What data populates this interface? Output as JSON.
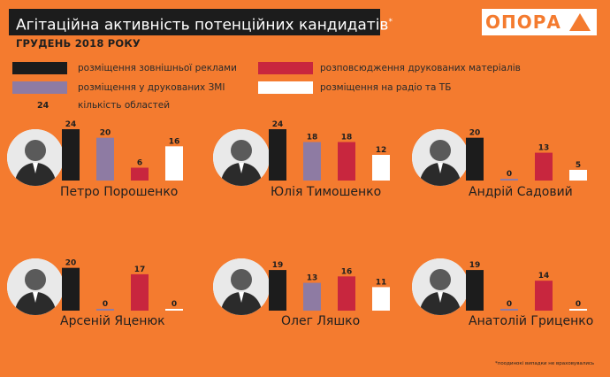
{
  "header": {
    "title": "Агітаційна активність потенційних кандидатів",
    "title_mark": "*",
    "subtitle": "ГРУДЕНЬ 2018 РОКУ",
    "logo_text": "ОПОРА"
  },
  "legend": {
    "items": [
      {
        "label": "розміщення зовнішньої реклами",
        "color": "#1c1c1c"
      },
      {
        "label": "розміщення у друкованих ЗМІ",
        "color": "#8E7BA3"
      },
      {
        "label": "розповсюдження друкованих матеріалів",
        "color": "#C8263E"
      },
      {
        "label": "розміщення на радіо та ТБ",
        "color": "#FFFFFF"
      }
    ],
    "count_sample": "24",
    "count_label": "кількість областей"
  },
  "chart_data": [
    {
      "type": "bar",
      "name": "Петро Порошенко",
      "categories": [
        "розміщення зовнішньої реклами",
        "розміщення у друкованих ЗМІ",
        "розповсюдження друкованих матеріалів",
        "розміщення на радіо та ТБ"
      ],
      "values": [
        24,
        20,
        6,
        16
      ],
      "ylim": [
        0,
        24
      ]
    },
    {
      "type": "bar",
      "name": "Юлія Тимошенко",
      "categories": [
        "розміщення зовнішньої реклами",
        "розміщення у друкованих ЗМІ",
        "розповсюдження друкованих матеріалів",
        "розміщення на радіо та ТБ"
      ],
      "values": [
        24,
        18,
        18,
        12
      ],
      "ylim": [
        0,
        24
      ]
    },
    {
      "type": "bar",
      "name": "Андрій Садовий",
      "categories": [
        "розміщення зовнішньої реклами",
        "розміщення у друкованих ЗМІ",
        "розповсюдження друкованих матеріалів",
        "розміщення на радіо та ТБ"
      ],
      "values": [
        20,
        0,
        13,
        5
      ],
      "ylim": [
        0,
        24
      ]
    },
    {
      "type": "bar",
      "name": "Арсеній Яценюк",
      "categories": [
        "розміщення зовнішньої реклами",
        "розміщення у друкованих ЗМІ",
        "розповсюдження друкованих матеріалів",
        "розміщення на радіо та ТБ"
      ],
      "values": [
        20,
        0,
        17,
        0
      ],
      "ylim": [
        0,
        24
      ]
    },
    {
      "type": "bar",
      "name": "Олег Ляшко",
      "categories": [
        "розміщення зовнішньої реклами",
        "розміщення у друкованих ЗМІ",
        "розповсюдження друкованих матеріалів",
        "розміщення на радіо та ТБ"
      ],
      "values": [
        19,
        13,
        16,
        11
      ],
      "ylim": [
        0,
        24
      ]
    },
    {
      "type": "bar",
      "name": "Анатолій Гриценко",
      "categories": [
        "розміщення зовнішньої реклами",
        "розміщення у друкованих ЗМІ",
        "розповсюдження друкованих матеріалів",
        "розміщення на радіо та ТБ"
      ],
      "values": [
        19,
        0,
        14,
        0
      ],
      "ylim": [
        0,
        24
      ]
    }
  ],
  "footnote": "*поодинокі випадки не враховувались",
  "colors": {
    "background": "#F47B2F",
    "outdoor": "#1c1c1c",
    "print_media": "#8E7BA3",
    "printed_materials": "#C8263E",
    "radio_tv": "#FFFFFF"
  }
}
